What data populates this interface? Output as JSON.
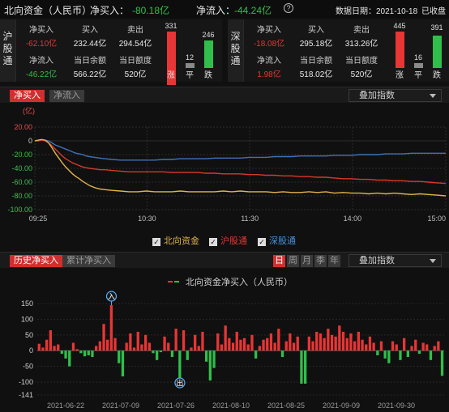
{
  "header": {
    "title": "北向资金（人民币）",
    "net_buy_label": "净买入：",
    "net_buy_value": "-80.18亿",
    "net_inflow_label": "净流入：",
    "net_inflow_value": "-44.24亿",
    "help_icon": "?",
    "date_label": "数据日期：2021-10-18",
    "status": "已收盘"
  },
  "sh": {
    "side_label": "沪股通",
    "net_buy_label": "净买入",
    "net_buy": "-62.10亿",
    "buy_label": "买入",
    "buy": "232.44亿",
    "sell_label": "卖出",
    "sell": "294.54亿",
    "net_inflow_label": "净流入",
    "net_inflow": "-46.22亿",
    "balance_label": "当日余额",
    "balance": "566.22亿",
    "quota_label": "当日额度",
    "quota": "520亿",
    "up_count": "331",
    "flat_count": "12",
    "down_count": "246",
    "up_label": "涨",
    "flat_label": "平",
    "down_label": "跌"
  },
  "sz": {
    "side_label": "深股通",
    "net_buy_label": "净买入",
    "net_buy": "-18.08亿",
    "buy_label": "买入",
    "buy": "295.18亿",
    "sell_label": "卖出",
    "sell": "313.26亿",
    "net_inflow_label": "净流入",
    "net_inflow": "1.98亿",
    "balance_label": "当日余额",
    "balance": "518.02亿",
    "quota_label": "当日额度",
    "quota": "520亿",
    "up_count": "445",
    "flat_count": "16",
    "down_count": "391",
    "up_label": "涨",
    "flat_label": "平",
    "down_label": "跌"
  },
  "intraday": {
    "tab_active": "净买入",
    "tab_inactive": "净流入",
    "overlay_select": "叠加指数",
    "legend": [
      "北向资金",
      "沪股通",
      "深股通"
    ]
  },
  "history": {
    "tab_active": "历史净买入",
    "tab_inactive": "累计净买入",
    "period_buttons": [
      "日",
      "周",
      "月",
      "季",
      "年"
    ],
    "overlay_select": "叠加指数",
    "legend": "北向资金净买入（人民币）",
    "marker_in": "入",
    "marker_out": "出"
  },
  "colors": {
    "up": "#e83535",
    "down": "#2fbf4a",
    "north": "#e2b34c",
    "sh": "#d33a2c",
    "sz": "#3f72b8"
  },
  "chart_data": [
    {
      "type": "line",
      "ylabel": "(亿)",
      "ylim": [
        -100,
        20
      ],
      "yticks": [
        "20.00",
        "0",
        "-20.00",
        "-40.00",
        "-60.00",
        "-80.00",
        "-100.00"
      ],
      "xticks": [
        "09:25",
        "10:30",
        "11:30",
        "14:00",
        "15:00"
      ],
      "x": [
        0,
        2,
        4,
        6,
        8,
        10,
        12,
        14,
        16,
        18,
        20,
        22,
        24,
        26,
        28,
        30,
        32,
        35,
        38,
        41,
        45,
        50,
        55,
        60,
        65,
        70,
        75,
        80,
        85,
        90,
        95,
        100,
        105,
        110,
        115,
        120,
        125,
        130,
        135,
        140,
        145,
        150,
        155,
        160,
        165,
        170,
        175,
        180,
        185,
        190,
        195,
        200,
        205,
        210,
        215,
        220,
        225,
        230,
        235,
        240
      ],
      "series": [
        {
          "name": "北向资金",
          "values": [
            0,
            1,
            2,
            1,
            -3,
            -10,
            -18,
            -25,
            -32,
            -38,
            -43,
            -48,
            -52,
            -55,
            -59,
            -62,
            -65,
            -68,
            -70,
            -71,
            -72,
            -73,
            -74,
            -74,
            -73,
            -74,
            -74,
            -74,
            -73,
            -74,
            -74,
            -74,
            -74,
            -73,
            -74,
            -73,
            -74,
            -74,
            -74,
            -75,
            -74,
            -75,
            -75,
            -74,
            -75,
            -74,
            -76,
            -75,
            -76,
            -76,
            -77,
            -76,
            -77,
            -76,
            -77,
            -78,
            -77,
            -78,
            -79,
            -80
          ]
        },
        {
          "name": "沪股通",
          "values": [
            0,
            1,
            1,
            0,
            -3,
            -7,
            -12,
            -17,
            -22,
            -26,
            -29,
            -32,
            -34,
            -36,
            -38,
            -39,
            -40,
            -41,
            -42,
            -42,
            -43,
            -44,
            -45,
            -45,
            -45,
            -45,
            -45,
            -46,
            -46,
            -46,
            -46,
            -47,
            -47,
            -48,
            -48,
            -48,
            -49,
            -49,
            -50,
            -50,
            -51,
            -51,
            -52,
            -52,
            -53,
            -53,
            -54,
            -55,
            -55,
            -56,
            -56,
            -57,
            -57,
            -58,
            -58,
            -59,
            -59,
            -60,
            -61,
            -62
          ]
        },
        {
          "name": "深股通",
          "values": [
            0,
            0,
            1,
            1,
            0,
            -3,
            -6,
            -8,
            -10,
            -12,
            -14,
            -16,
            -18,
            -19,
            -20,
            -22,
            -23,
            -24,
            -25,
            -26,
            -27,
            -28,
            -28,
            -28,
            -28,
            -28,
            -27,
            -27,
            -26,
            -26,
            -26,
            -26,
            -25,
            -25,
            -25,
            -25,
            -24,
            -24,
            -24,
            -23,
            -23,
            -23,
            -22,
            -22,
            -22,
            -22,
            -21,
            -21,
            -21,
            -20,
            -20,
            -20,
            -19,
            -19,
            -19,
            -18,
            -18,
            -18,
            -18,
            -18
          ]
        }
      ]
    },
    {
      "type": "bar",
      "ylim": [
        -141,
        150
      ],
      "yticks": [
        150,
        100,
        50,
        0,
        -50,
        -100,
        -141
      ],
      "xticks": [
        "2021-06-22",
        "2021-07-09",
        "2021-07-26",
        "2021-08-10",
        "2021-08-25",
        "2021-09-09",
        "2021-09-30"
      ],
      "series": [
        {
          "name": "北向资金净买入（人民币）",
          "values": [
            22,
            10,
            35,
            65,
            15,
            20,
            -10,
            -25,
            -50,
            25,
            5,
            -8,
            -18,
            -15,
            -20,
            15,
            30,
            85,
            35,
            145,
            40,
            -40,
            -82,
            25,
            55,
            10,
            60,
            20,
            50,
            25,
            -8,
            -30,
            -5,
            45,
            25,
            -20,
            70,
            -105,
            65,
            -30,
            10,
            50,
            15,
            60,
            -35,
            -95,
            -55,
            55,
            20,
            80,
            40,
            25,
            60,
            35,
            40,
            20,
            50,
            -25,
            15,
            35,
            40,
            55,
            25,
            70,
            -20,
            30,
            55,
            25,
            45,
            -105,
            -105,
            45,
            30,
            60,
            55,
            40,
            70,
            50,
            45,
            80,
            60,
            40,
            55,
            30,
            60,
            35,
            20,
            45,
            25,
            -15,
            30,
            -25,
            -40,
            30,
            20,
            -30,
            40,
            -20,
            15,
            35,
            -10,
            25,
            20,
            -30,
            15,
            30,
            -80
          ]
        }
      ]
    }
  ]
}
